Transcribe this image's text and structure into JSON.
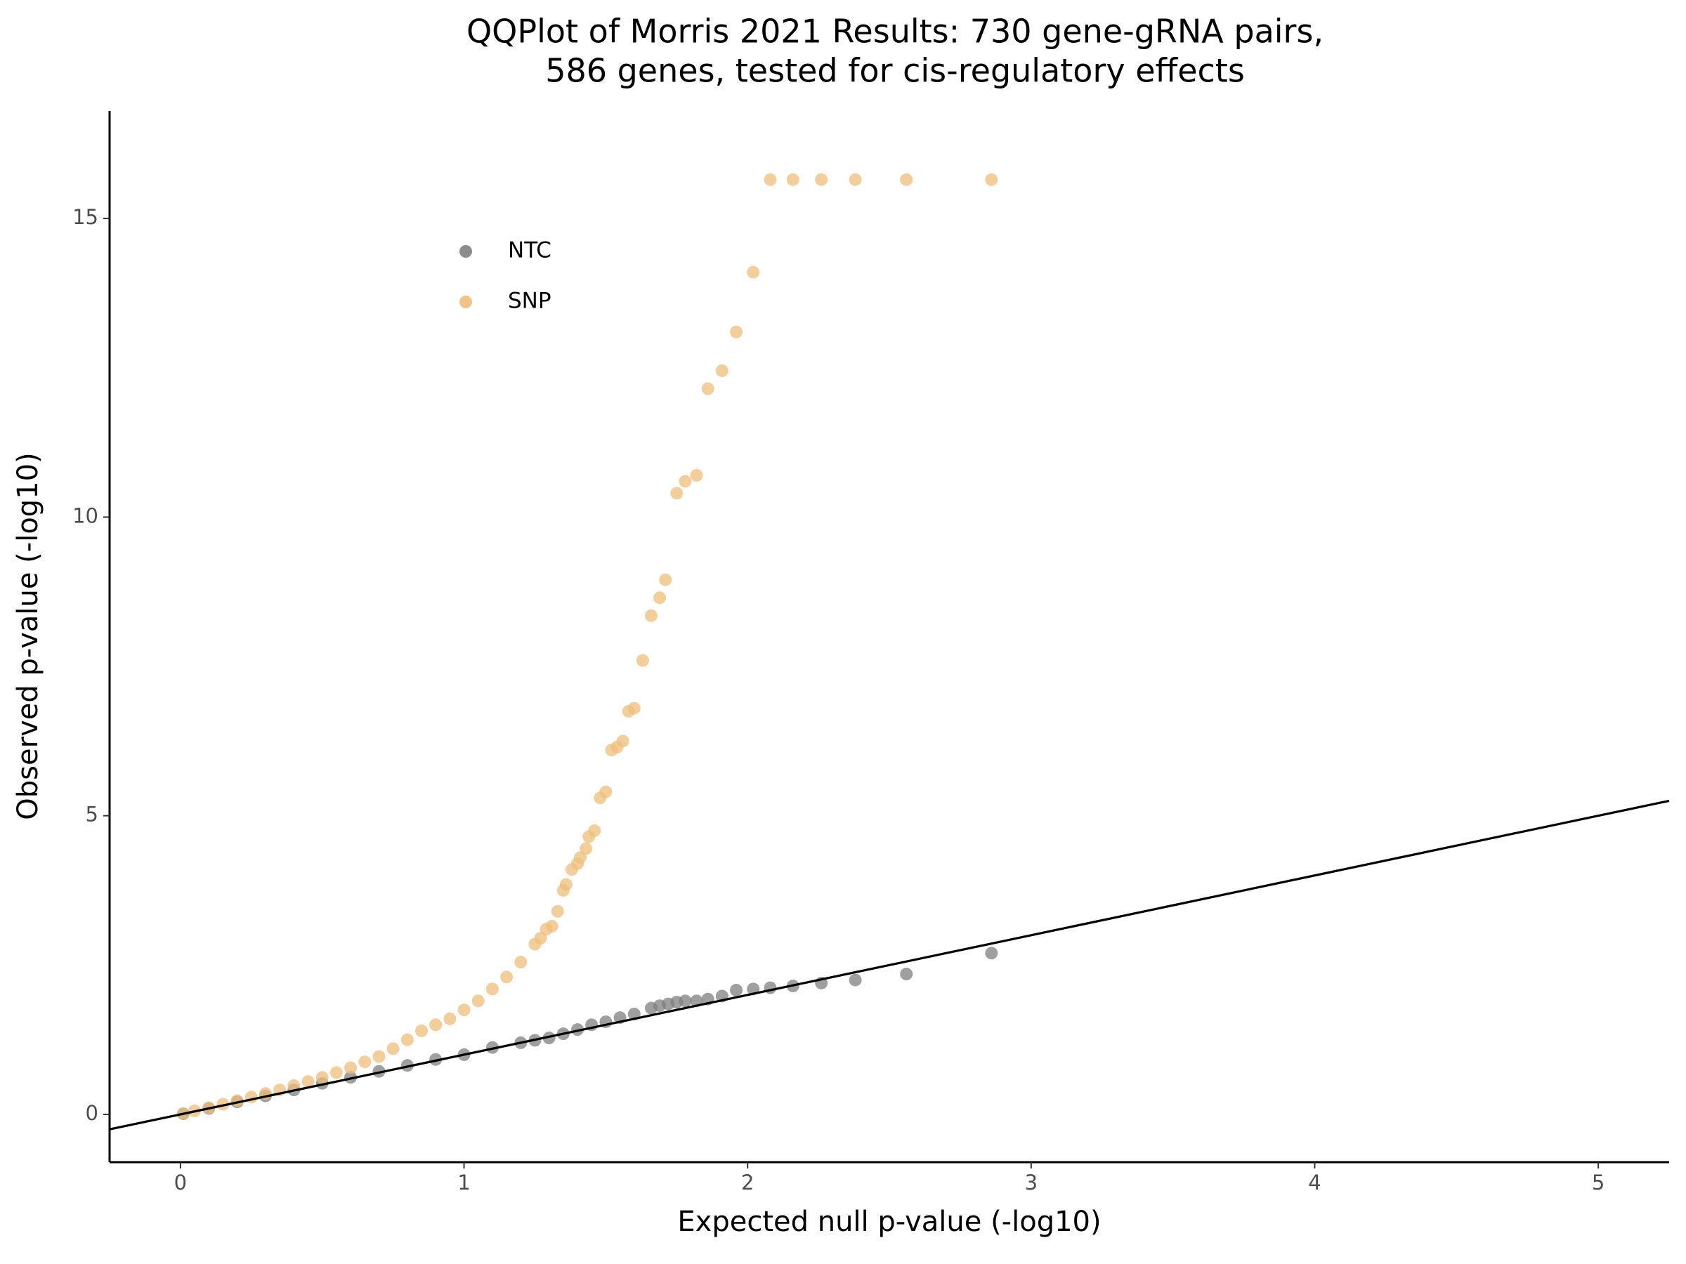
{
  "chart_data": {
    "type": "scatter",
    "title": [
      "QQPlot of Morris 2021 Results: 730 gene-gRNA pairs,",
      "586 genes, tested for cis-regulatory effects"
    ],
    "x_label": "Expected null p-value (-log10)",
    "y_label": "Observed p-value (-log10)",
    "xlim": [
      -0.25,
      5.25
    ],
    "xticks": [
      0,
      1,
      2,
      3,
      4,
      5
    ],
    "ylim": [
      -0.8,
      16.8
    ],
    "yticks": [
      0,
      5,
      10,
      15
    ],
    "legend": "top-left",
    "reference_line": {
      "slope": 1,
      "intercept": 0,
      "color": "#000000"
    },
    "series": [
      {
        "name": "NTC",
        "color": "#7f7f7f",
        "x": [
          2.86,
          2.56,
          2.38,
          2.26,
          2.16,
          2.08,
          2.02,
          1.96,
          1.91,
          1.86,
          1.82,
          1.78,
          1.75,
          1.72,
          1.69,
          1.66,
          1.6,
          1.55,
          1.5,
          1.45,
          1.4,
          1.35,
          1.3,
          1.25,
          1.2,
          1.1,
          1.0,
          0.9,
          0.8,
          0.7,
          0.6,
          0.5,
          0.4,
          0.3,
          0.2,
          0.1,
          0.01
        ],
        "values": [
          2.7,
          2.35,
          2.25,
          2.2,
          2.15,
          2.12,
          2.1,
          2.08,
          1.98,
          1.93,
          1.9,
          1.9,
          1.88,
          1.85,
          1.82,
          1.78,
          1.68,
          1.62,
          1.55,
          1.5,
          1.42,
          1.35,
          1.28,
          1.24,
          1.2,
          1.12,
          1.0,
          0.92,
          0.82,
          0.72,
          0.62,
          0.52,
          0.41,
          0.31,
          0.21,
          0.1,
          0.01
        ]
      },
      {
        "name": "SNP",
        "color": "#efbd7c",
        "x": [
          2.86,
          2.56,
          2.38,
          2.26,
          2.16,
          2.08,
          2.02,
          1.96,
          1.91,
          1.86,
          1.82,
          1.78,
          1.75,
          1.71,
          1.69,
          1.66,
          1.63,
          1.6,
          1.58,
          1.56,
          1.54,
          1.52,
          1.5,
          1.48,
          1.46,
          1.44,
          1.43,
          1.41,
          1.4,
          1.38,
          1.36,
          1.35,
          1.33,
          1.31,
          1.29,
          1.27,
          1.25,
          1.2,
          1.15,
          1.1,
          1.05,
          1.0,
          0.95,
          0.9,
          0.85,
          0.8,
          0.75,
          0.7,
          0.65,
          0.6,
          0.55,
          0.5,
          0.45,
          0.4,
          0.35,
          0.3,
          0.25,
          0.2,
          0.15,
          0.1,
          0.05,
          0.01
        ],
        "values": [
          15.65,
          15.65,
          15.65,
          15.65,
          15.65,
          15.65,
          14.1,
          13.1,
          12.45,
          12.15,
          10.7,
          10.6,
          10.4,
          8.95,
          8.65,
          8.35,
          7.6,
          6.8,
          6.75,
          6.25,
          6.15,
          6.1,
          5.4,
          5.3,
          4.75,
          4.65,
          4.45,
          4.3,
          4.2,
          4.1,
          3.85,
          3.75,
          3.4,
          3.15,
          3.1,
          2.95,
          2.85,
          2.55,
          2.3,
          2.1,
          1.9,
          1.75,
          1.6,
          1.5,
          1.4,
          1.25,
          1.1,
          0.97,
          0.88,
          0.78,
          0.7,
          0.62,
          0.55,
          0.48,
          0.41,
          0.35,
          0.29,
          0.23,
          0.17,
          0.11,
          0.06,
          0.01
        ]
      }
    ]
  }
}
